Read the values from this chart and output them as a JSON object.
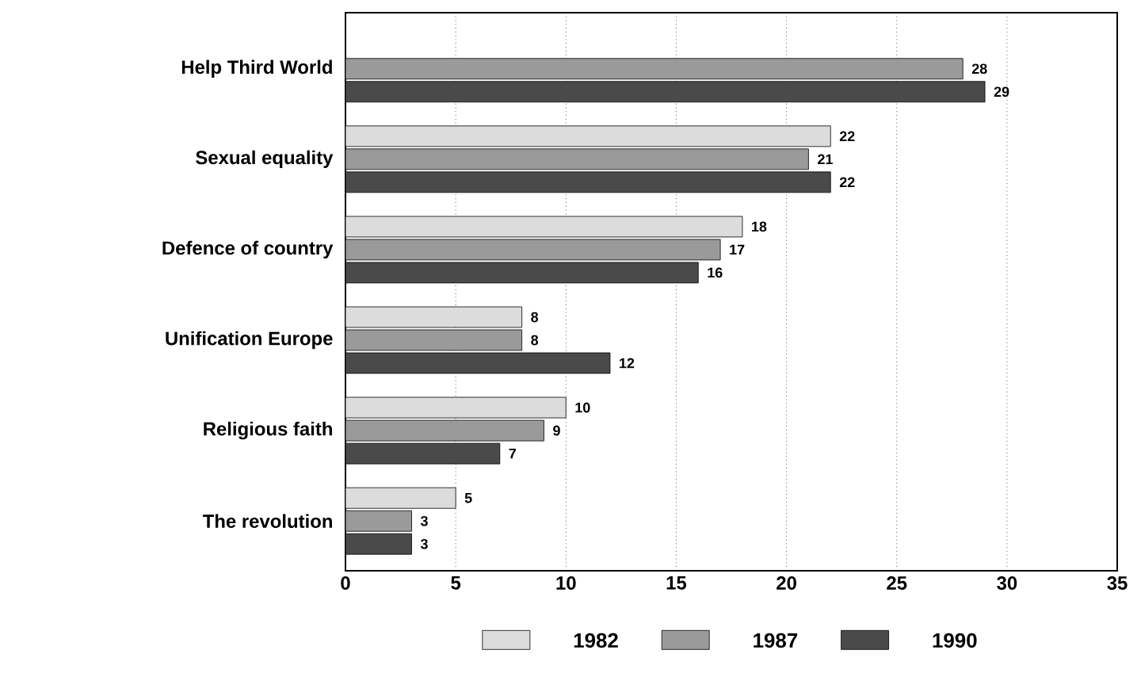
{
  "chart_data": {
    "type": "bar",
    "orientation": "horizontal",
    "categories": [
      "Help Third World",
      "Sexual equality",
      "Defence of country",
      "Unification Europe",
      "Religious faith",
      "The revolution"
    ],
    "series": [
      {
        "name": "1982",
        "color": "#dcdcdc",
        "values": [
          null,
          22,
          18,
          8,
          10,
          5
        ]
      },
      {
        "name": "1987",
        "color": "#9a9a9a",
        "values": [
          28,
          21,
          17,
          8,
          9,
          3
        ]
      },
      {
        "name": "1990",
        "color": "#4a4a4a",
        "values": [
          29,
          22,
          16,
          12,
          7,
          3
        ]
      }
    ],
    "xlim": [
      0,
      35
    ],
    "xticks": [
      0,
      5,
      10,
      15,
      20,
      25,
      30,
      35
    ],
    "grid": "x",
    "legend": "bottom",
    "data_labels": true
  }
}
